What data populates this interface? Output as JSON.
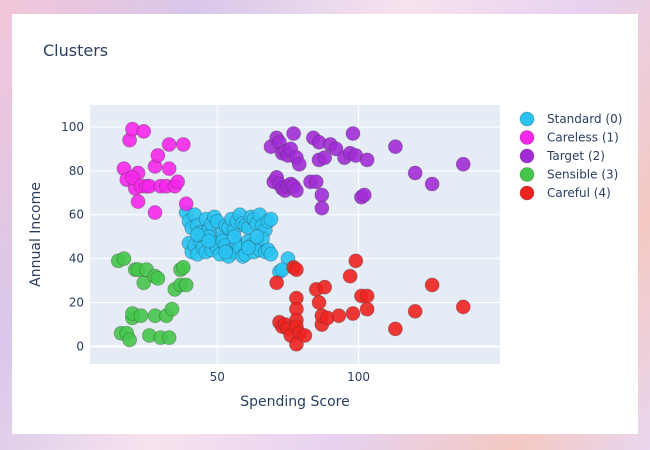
{
  "chart_data": {
    "type": "scatter",
    "title": "Clusters",
    "xlabel": "Spending Score",
    "ylabel": "Annual Income",
    "xlim": [
      5,
      150
    ],
    "ylim": [
      -8,
      110
    ],
    "x_ticks": [
      50,
      100
    ],
    "y_ticks": [
      0,
      20,
      40,
      60,
      80,
      100
    ],
    "grid": true,
    "legend_position": "right",
    "series": [
      {
        "name": "Standard (0)",
        "color": "#29c3f2",
        "points": [
          [
            39,
            61
          ],
          [
            40,
            57
          ],
          [
            41,
            54
          ],
          [
            42,
            60
          ],
          [
            43,
            55
          ],
          [
            44,
            52
          ],
          [
            45,
            50
          ],
          [
            46,
            58
          ],
          [
            47,
            53
          ],
          [
            48,
            56
          ],
          [
            49,
            59
          ],
          [
            50,
            57
          ],
          [
            51,
            49
          ],
          [
            52,
            52
          ],
          [
            53,
            55
          ],
          [
            54,
            54
          ],
          [
            55,
            58
          ],
          [
            56,
            53
          ],
          [
            57,
            57
          ],
          [
            58,
            60
          ],
          [
            59,
            56
          ],
          [
            60,
            55
          ],
          [
            61,
            54
          ],
          [
            62,
            59
          ],
          [
            63,
            58
          ],
          [
            64,
            56
          ],
          [
            65,
            60
          ],
          [
            66,
            55
          ],
          [
            67,
            53
          ],
          [
            68,
            57
          ],
          [
            69,
            58
          ],
          [
            40,
            47
          ],
          [
            41,
            43
          ],
          [
            42,
            46
          ],
          [
            43,
            42
          ],
          [
            44,
            48
          ],
          [
            45,
            45
          ],
          [
            46,
            43
          ],
          [
            47,
            50
          ],
          [
            48,
            44
          ],
          [
            49,
            47
          ],
          [
            50,
            45
          ],
          [
            51,
            42
          ],
          [
            52,
            48
          ],
          [
            53,
            46
          ],
          [
            54,
            41
          ],
          [
            55,
            44
          ],
          [
            56,
            43
          ],
          [
            57,
            47
          ],
          [
            58,
            45
          ],
          [
            59,
            41
          ],
          [
            60,
            42
          ],
          [
            61,
            48
          ],
          [
            62,
            46
          ],
          [
            63,
            43
          ],
          [
            64,
            47
          ],
          [
            65,
            44
          ],
          [
            66,
            49
          ],
          [
            67,
            43
          ],
          [
            68,
            44
          ],
          [
            69,
            42
          ],
          [
            43,
            51
          ],
          [
            47,
            48
          ],
          [
            53,
            43
          ],
          [
            56,
            50
          ],
          [
            61,
            45
          ],
          [
            64,
            50
          ],
          [
            75,
            40
          ],
          [
            72,
            34
          ],
          [
            73,
            35
          ]
        ]
      },
      {
        "name": "Careless (1)",
        "color": "#f527ea",
        "points": [
          [
            17,
            81
          ],
          [
            18,
            76
          ],
          [
            19,
            94
          ],
          [
            20,
            99
          ],
          [
            21,
            72
          ],
          [
            22,
            79
          ],
          [
            20,
            77
          ],
          [
            22,
            66
          ],
          [
            23,
            73
          ],
          [
            24,
            98
          ],
          [
            25,
            73
          ],
          [
            26,
            73
          ],
          [
            28,
            61
          ],
          [
            28,
            82
          ],
          [
            29,
            87
          ],
          [
            30,
            73
          ],
          [
            32,
            73
          ],
          [
            33,
            92
          ],
          [
            33,
            81
          ],
          [
            35,
            73
          ],
          [
            36,
            75
          ],
          [
            38,
            92
          ],
          [
            39,
            65
          ]
        ]
      },
      {
        "name": "Target (2)",
        "color": "#a12cd5",
        "points": [
          [
            69,
            91
          ],
          [
            71,
            95
          ],
          [
            72,
            93
          ],
          [
            73,
            88
          ],
          [
            74,
            89
          ],
          [
            75,
            87
          ],
          [
            76,
            90
          ],
          [
            77,
            97
          ],
          [
            78,
            86
          ],
          [
            79,
            83
          ],
          [
            70,
            75
          ],
          [
            71,
            77
          ],
          [
            72,
            74
          ],
          [
            73,
            72
          ],
          [
            74,
            71
          ],
          [
            75,
            73
          ],
          [
            76,
            74
          ],
          [
            77,
            73
          ],
          [
            78,
            71
          ],
          [
            84,
            95
          ],
          [
            86,
            93
          ],
          [
            86,
            85
          ],
          [
            88,
            86
          ],
          [
            90,
            92
          ],
          [
            83,
            75
          ],
          [
            85,
            75
          ],
          [
            87,
            69
          ],
          [
            87,
            63
          ],
          [
            92,
            90
          ],
          [
            95,
            86
          ],
          [
            97,
            88
          ],
          [
            98,
            97
          ],
          [
            99,
            87
          ],
          [
            101,
            68
          ],
          [
            102,
            69
          ],
          [
            103,
            85
          ],
          [
            113,
            91
          ],
          [
            120,
            79
          ],
          [
            126,
            74
          ],
          [
            137,
            83
          ]
        ]
      },
      {
        "name": "Sensible (3)",
        "color": "#45c54b",
        "points": [
          [
            15,
            39
          ],
          [
            16,
            6
          ],
          [
            17,
            40
          ],
          [
            18,
            6
          ],
          [
            19,
            3
          ],
          [
            20,
            13
          ],
          [
            20,
            15
          ],
          [
            21,
            35
          ],
          [
            22,
            35
          ],
          [
            23,
            14
          ],
          [
            24,
            29
          ],
          [
            25,
            35
          ],
          [
            26,
            5
          ],
          [
            28,
            14
          ],
          [
            28,
            32
          ],
          [
            29,
            31
          ],
          [
            30,
            4
          ],
          [
            32,
            14
          ],
          [
            33,
            4
          ],
          [
            34,
            17
          ],
          [
            35,
            26
          ],
          [
            37,
            28
          ],
          [
            37,
            35
          ],
          [
            38,
            36
          ],
          [
            39,
            28
          ]
        ]
      },
      {
        "name": "Careful (4)",
        "color": "#ee2320",
        "points": [
          [
            71,
            29
          ],
          [
            72,
            11
          ],
          [
            73,
            9
          ],
          [
            74,
            10
          ],
          [
            75,
            8
          ],
          [
            76,
            5
          ],
          [
            77,
            36
          ],
          [
            78,
            35
          ],
          [
            78,
            22
          ],
          [
            78,
            17
          ],
          [
            78,
            12
          ],
          [
            78,
            9
          ],
          [
            79,
            6
          ],
          [
            78,
            1
          ],
          [
            81,
            5
          ],
          [
            85,
            26
          ],
          [
            86,
            20
          ],
          [
            87,
            10
          ],
          [
            87,
            14
          ],
          [
            88,
            27
          ],
          [
            89,
            13
          ],
          [
            93,
            14
          ],
          [
            97,
            32
          ],
          [
            98,
            15
          ],
          [
            99,
            39
          ],
          [
            101,
            23
          ],
          [
            103,
            23
          ],
          [
            103,
            17
          ],
          [
            113,
            8
          ],
          [
            120,
            16
          ],
          [
            126,
            28
          ],
          [
            137,
            18
          ]
        ]
      }
    ]
  }
}
